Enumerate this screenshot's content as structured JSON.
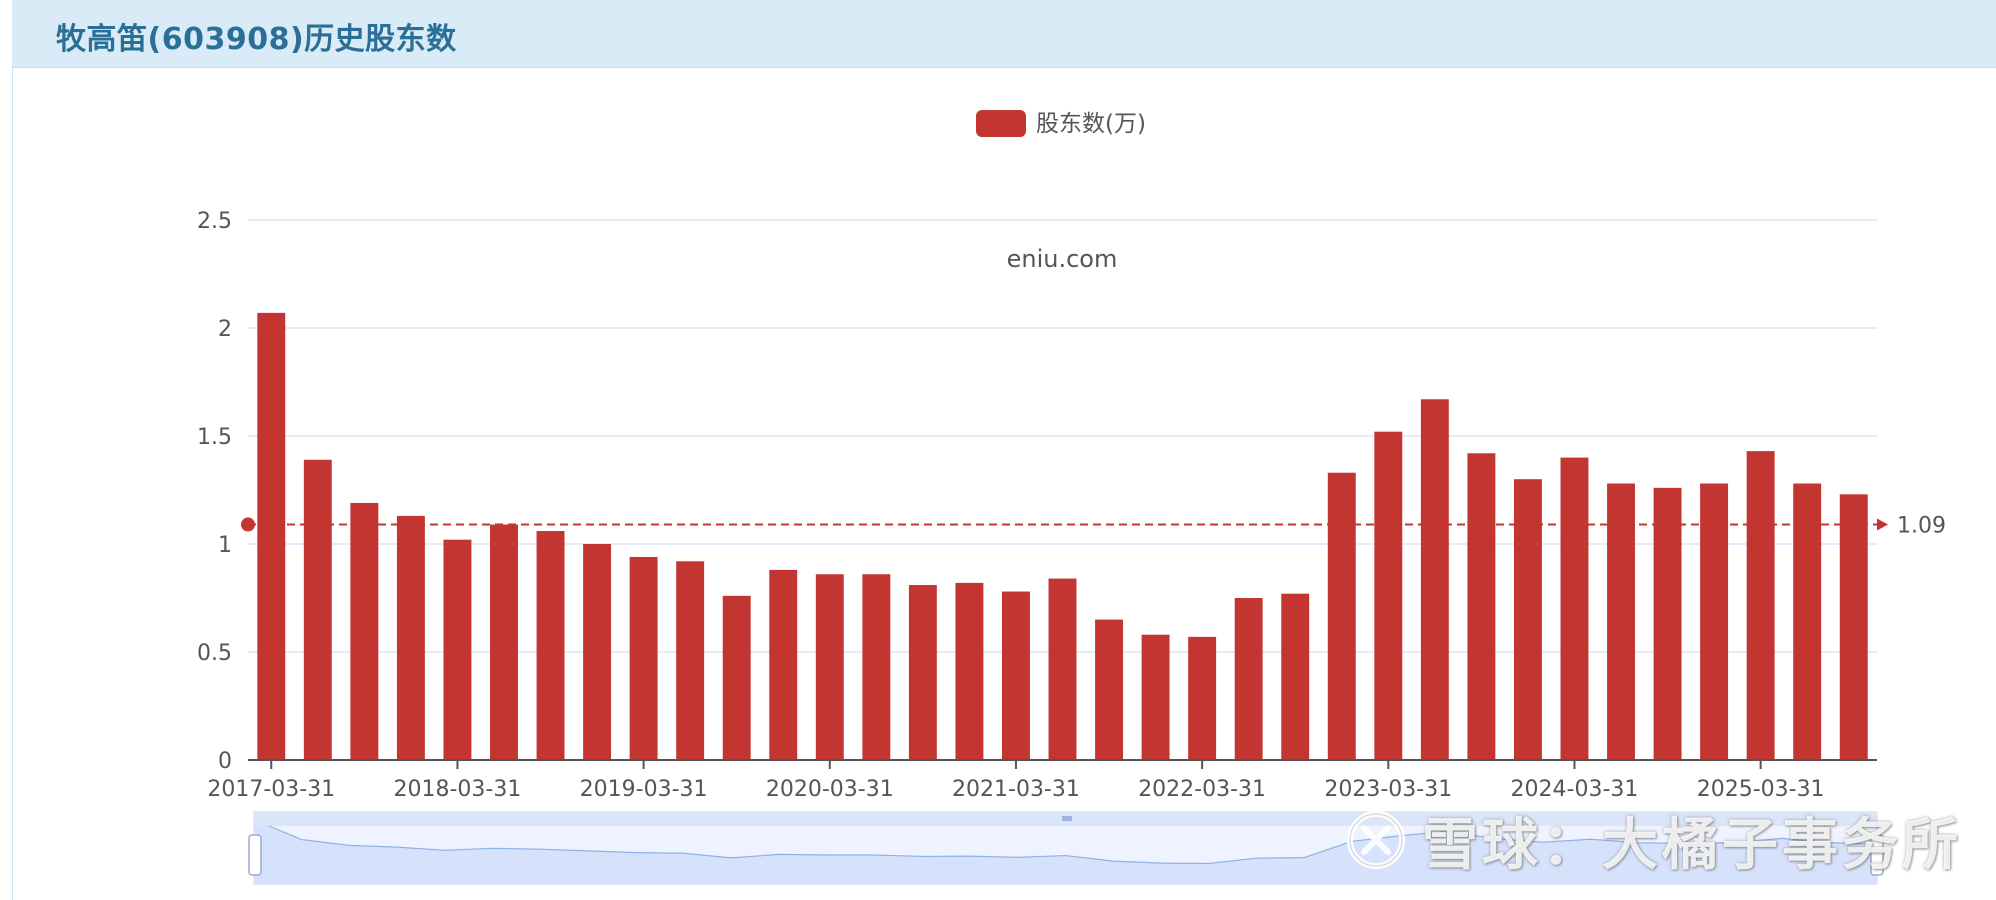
{
  "page": {
    "title": "牧高笛(603908)历史股东数"
  },
  "watermarks": {
    "site": "eniu.com",
    "brand": "雪球：大橘子事务所"
  },
  "colors": {
    "bar": "#c23531",
    "header_bg": "#d8ebf6",
    "title": "#2a6f97",
    "grid": "#dfe3f7",
    "zoom_fill": "#d6e2fb"
  },
  "chart_data": {
    "type": "bar",
    "title": "",
    "legend": {
      "position": "top-center",
      "entries": [
        "股东数(万)"
      ]
    },
    "series": [
      {
        "name": "股东数(万)",
        "color": "#c23531",
        "values": [
          2.07,
          1.39,
          1.19,
          1.13,
          1.02,
          1.09,
          1.06,
          1.0,
          0.94,
          0.92,
          0.76,
          0.88,
          0.86,
          0.86,
          0.81,
          0.82,
          0.78,
          0.84,
          0.65,
          0.58,
          0.57,
          0.75,
          0.77,
          1.33,
          1.52,
          1.67,
          1.42,
          1.3,
          1.4,
          1.28,
          1.26,
          1.28,
          1.43,
          1.28,
          1.23
        ]
      }
    ],
    "x_tick_labels": [
      "2017-03-31",
      "2018-03-31",
      "2019-03-31",
      "2020-03-31",
      "2021-03-31",
      "2022-03-31",
      "2023-03-31",
      "2024-03-31",
      "2025-03-31"
    ],
    "y_ticks": [
      "0",
      "0.5",
      "1",
      "1.5",
      "2",
      "2.5"
    ],
    "ylim": [
      0,
      2.5
    ],
    "grid": true,
    "mark_line": {
      "label": "1.09",
      "value": 1.09,
      "style": "dashed"
    },
    "data_zoom": {
      "start_percent": 0,
      "end_percent": 100
    }
  }
}
